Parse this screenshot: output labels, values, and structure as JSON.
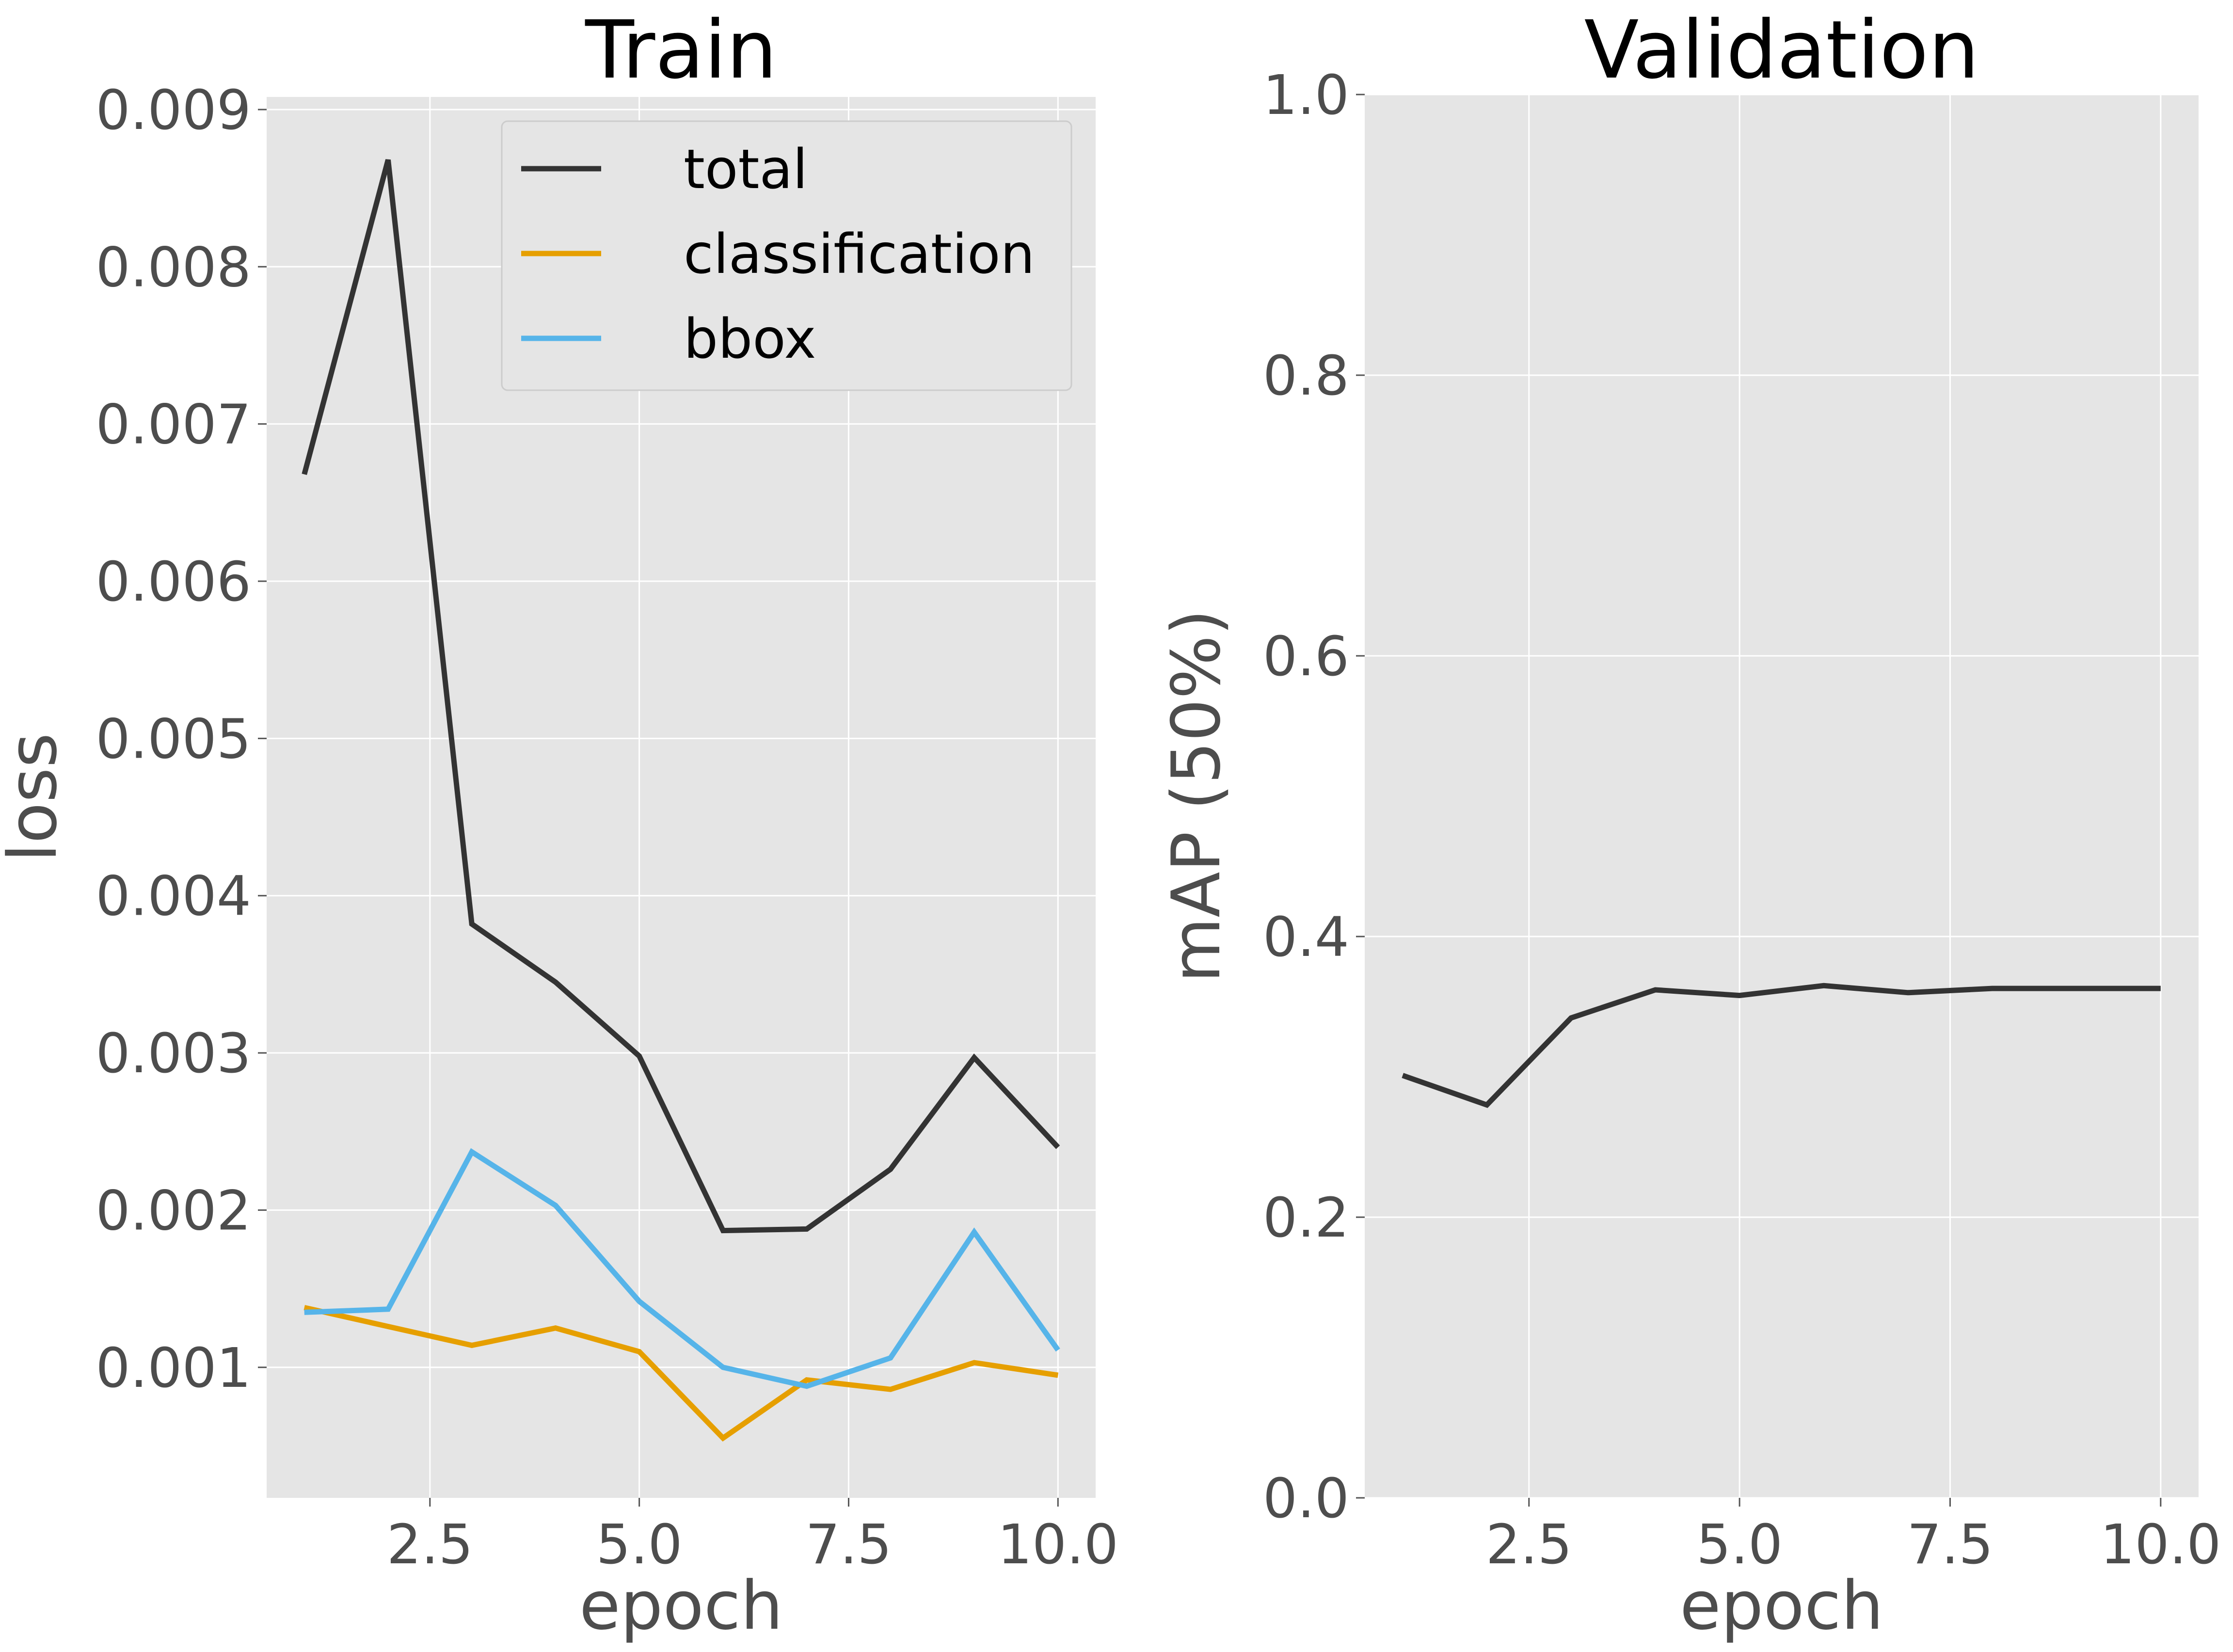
{
  "chart_data": [
    {
      "type": "line",
      "title": "Train",
      "xlabel": "epoch",
      "ylabel": "loss",
      "xlim": [
        0.55,
        10.45
      ],
      "ylim": [
        0.00017,
        0.00908
      ],
      "xticks": [
        2.5,
        5.0,
        7.5,
        10.0
      ],
      "xtick_labels": [
        "2.5",
        "5.0",
        "7.5",
        "10.0"
      ],
      "yticks": [
        0.001,
        0.002,
        0.003,
        0.004,
        0.005,
        0.006,
        0.007,
        0.008,
        0.009
      ],
      "ytick_labels": [
        "0.001",
        "0.002",
        "0.003",
        "0.004",
        "0.005",
        "0.006",
        "0.007",
        "0.008",
        "0.009"
      ],
      "grid": true,
      "legend": "top-right",
      "x": [
        1,
        2,
        3,
        4,
        5,
        6,
        7,
        8,
        9,
        10
      ],
      "series": [
        {
          "name": "total",
          "color": "#333333",
          "values": [
            0.00668,
            0.00868,
            0.00382,
            0.00345,
            0.00298,
            0.00187,
            0.00188,
            0.00226,
            0.00297,
            0.0024
          ]
        },
        {
          "name": "classification",
          "color": "#e69f00",
          "values": [
            0.00138,
            0.00126,
            0.00114,
            0.00125,
            0.0011,
            0.00055,
            0.00092,
            0.00086,
            0.00103,
            0.00095
          ]
        },
        {
          "name": "bbox",
          "color": "#56b4e9",
          "values": [
            0.00135,
            0.00137,
            0.00237,
            0.00203,
            0.00142,
            0.001,
            0.00088,
            0.00106,
            0.00186,
            0.00111
          ]
        }
      ]
    },
    {
      "type": "line",
      "title": "Validation",
      "xlabel": "epoch",
      "ylabel": "mAP (50%)",
      "xlim": [
        0.55,
        10.45
      ],
      "ylim": [
        0.0,
        1.0
      ],
      "xticks": [
        2.5,
        5.0,
        7.5,
        10.0
      ],
      "xtick_labels": [
        "2.5",
        "5.0",
        "7.5",
        "10.0"
      ],
      "yticks": [
        0.0,
        0.2,
        0.4,
        0.6,
        0.8,
        1.0
      ],
      "ytick_labels": [
        "0.0",
        "0.2",
        "0.4",
        "0.6",
        "0.8",
        "1.0"
      ],
      "grid": true,
      "legend": "none",
      "x": [
        1,
        2,
        3,
        4,
        5,
        6,
        7,
        8,
        9,
        10
      ],
      "series": [
        {
          "name": "mAP",
          "color": "#333333",
          "values": [
            0.301,
            0.28,
            0.342,
            0.362,
            0.358,
            0.365,
            0.36,
            0.363,
            0.363,
            0.363
          ]
        }
      ]
    }
  ]
}
